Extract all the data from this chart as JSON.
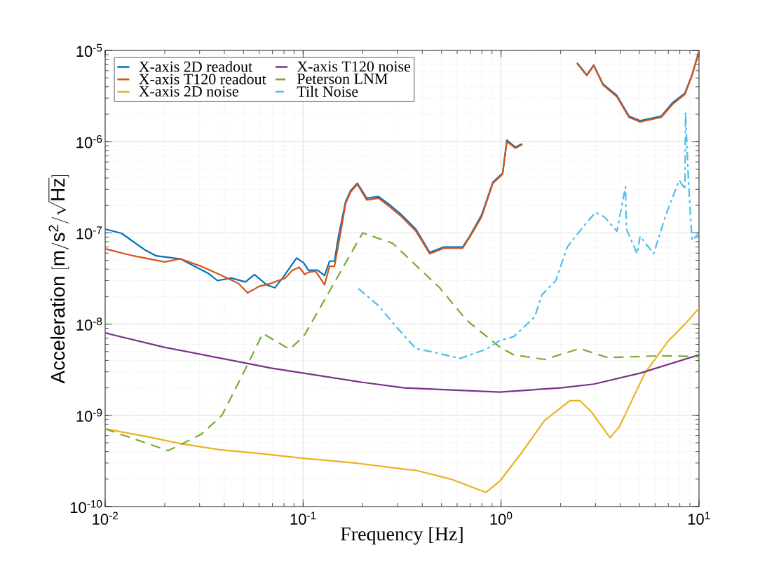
{
  "chart_data": {
    "type": "line",
    "xlabel": "Frequency [Hz]",
    "ylabel": "\\mathrm{Acceleration}\\ [\\mathrm{m/s^2/\\sqrt{Hz}}]",
    "log": "xy",
    "grid": true,
    "legend": "top left",
    "xlim": [
      0.01,
      10
    ],
    "ylim": [
      1e-10,
      1e-05
    ],
    "xticks": [
      {
        "value": 0.01,
        "label": "10$^{-2}$"
      },
      {
        "value": 0.1,
        "label": "10$^{-1}$"
      },
      {
        "value": 1,
        "label": "10$^{0}$"
      },
      {
        "value": 10,
        "label": "10$^{1}$"
      }
    ],
    "yticks": [
      {
        "value": 1e-10,
        "label": "10$^{-10}$"
      },
      {
        "value": 1e-09,
        "label": "10$^{-9}$"
      },
      {
        "value": 1e-08,
        "label": "10$^{-8}$"
      },
      {
        "value": 1e-07,
        "label": "10$^{-7}$"
      },
      {
        "value": 1e-06,
        "label": "10$^{-6}$"
      },
      {
        "value": 1e-05,
        "label": "10$^{-5}$"
      }
    ],
    "series": [
      {
        "name": "X-axis 2D readout",
        "color": "#0072bd",
        "line_style": "solid",
        "x": [
          0.01,
          0.0121,
          0.0159,
          0.0181,
          0.0239,
          0.0332,
          0.0369,
          0.0434,
          0.0511,
          0.0568,
          0.0653,
          0.072,
          0.0787,
          0.0927,
          0.1006,
          0.1064,
          0.1183,
          0.1284,
          0.136,
          0.144,
          0.151,
          0.164,
          0.1737,
          0.188,
          0.2095,
          0.2405,
          0.2765,
          0.315,
          0.371,
          0.436,
          0.514,
          0.64,
          0.695,
          0.798,
          0.909,
          1.018,
          1.07,
          1.18,
          1.28,
          1.6,
          2.42,
          2.71,
          2.94,
          3.27,
          3.85,
          4.43,
          5.04,
          6.44,
          7.39,
          8.49,
          9.22,
          10
        ],
        "values": [
          1.1e-07,
          9.9e-08,
          6.5e-08,
          5.6e-08,
          5.2e-08,
          3.6e-08,
          3e-08,
          3.2e-08,
          2.9e-08,
          3.5e-08,
          2.7e-08,
          2.5e-08,
          3.2e-08,
          5.3e-08,
          4.7e-08,
          3.9e-08,
          3.9e-08,
          3.4e-08,
          4.9e-08,
          4.9e-08,
          9.2e-08,
          2.2e-07,
          2.9e-07,
          3.5e-07,
          2.4e-07,
          2.5e-07,
          2e-07,
          1.57e-07,
          1.1e-07,
          6.1e-08,
          7e-08,
          7e-08,
          9.2e-08,
          1.57e-07,
          3.6e-07,
          4.5e-07,
          1.04e-06,
          8.7e-07,
          9.5e-07,
          null,
          7.3e-06,
          5.4e-06,
          6.9e-06,
          4.3e-06,
          3.2e-06,
          1.9e-06,
          1.7e-06,
          1.9e-06,
          2.7e-06,
          3.4e-06,
          5.4e-06,
          9.8e-06
        ]
      },
      {
        "name": "X-axis T120 readout",
        "color": "#d95319",
        "line_style": "solid",
        "x": [
          0.01,
          0.0139,
          0.02,
          0.0239,
          0.0306,
          0.0378,
          0.0471,
          0.0524,
          0.0601,
          0.069,
          0.075,
          0.0813,
          0.0883,
          0.0957,
          0.102,
          0.106,
          0.1156,
          0.1284,
          0.136,
          0.144,
          0.1535,
          0.164,
          0.1737,
          0.188,
          0.2095,
          0.2405,
          0.2765,
          0.315,
          0.371,
          0.436,
          0.514,
          0.64,
          0.695,
          0.798,
          0.909,
          1.018,
          1.07,
          1.18,
          1.28,
          1.6,
          2.42,
          2.71,
          2.94,
          3.27,
          3.85,
          4.43,
          5.04,
          6.44,
          7.39,
          8.49,
          9.22,
          10
        ],
        "values": [
          6.7e-08,
          5.6e-08,
          4.8e-08,
          5.2e-08,
          4.3e-08,
          3.5e-08,
          2.8e-08,
          2.2e-08,
          2.6e-08,
          2.8e-08,
          3e-08,
          3.2e-08,
          3.9e-08,
          4.2e-08,
          3.5e-08,
          3.7e-08,
          3.8e-08,
          2.7e-08,
          4.3e-08,
          4.3e-08,
          9.2e-08,
          2.1e-07,
          2.8e-07,
          3.4e-07,
          2.3e-07,
          2.4e-07,
          1.9e-07,
          1.5e-07,
          1.05e-07,
          5.9e-08,
          6.8e-08,
          6.8e-08,
          9e-08,
          1.5e-07,
          3.5e-07,
          4.4e-07,
          1e-06,
          8.5e-07,
          9.3e-07,
          null,
          7.2e-06,
          5.3e-06,
          6.8e-06,
          4.2e-06,
          3.1e-06,
          1.85e-06,
          1.65e-06,
          1.85e-06,
          2.6e-06,
          3.3e-06,
          5.3e-06,
          9.8e-06
        ]
      },
      {
        "name": "X-axis 2D noise",
        "color": "#edb120",
        "line_style": "solid",
        "x": [
          0.01,
          0.0159,
          0.0239,
          0.0378,
          0.0617,
          0.0982,
          0.184,
          0.334,
          0.371,
          0.557,
          0.838,
          0.986,
          1.26,
          1.66,
          2.23,
          2.5,
          2.85,
          3.55,
          3.95,
          5.33,
          6.98,
          8.49,
          10
        ],
        "values": [
          7.1e-10,
          5.9e-10,
          4.9e-10,
          4.2e-10,
          3.8e-10,
          3.4e-10,
          3e-10,
          2.55e-10,
          2.5e-10,
          2e-10,
          1.43e-10,
          1.9e-10,
          3.8e-10,
          8.8e-10,
          1.45e-09,
          1.45e-09,
          1.1e-09,
          5.7e-10,
          7.4e-10,
          2.9e-09,
          6.5e-09,
          1e-08,
          1.49e-08
        ]
      },
      {
        "name": "X-axis T120 noise",
        "color": "#7e2f8e",
        "line_style": "solid",
        "x": [
          0.01,
          0.0197,
          0.0389,
          0.0689,
          0.1006,
          0.2,
          0.325,
          0.49,
          0.986,
          2.0,
          2.94,
          5.04,
          10
        ],
        "values": [
          8e-09,
          5.6e-09,
          4.2e-09,
          3.3e-09,
          2.9e-09,
          2.3e-09,
          2e-09,
          1.92e-09,
          1.8e-09,
          2e-09,
          2.2e-09,
          2.9e-09,
          4.6e-09
        ]
      },
      {
        "name": "Peterson LNM",
        "color": "#77ac30",
        "line_style": "dashed",
        "x": [
          0.01,
          0.0208,
          0.0306,
          0.0389,
          0.0499,
          0.0626,
          0.0854,
          0.1006,
          0.2,
          0.283,
          0.49,
          0.67,
          0.986,
          1.16,
          1.66,
          2.5,
          3.45,
          6.44,
          10
        ],
        "values": [
          7.1e-10,
          4.1e-10,
          6.2e-10,
          1e-09,
          2.9e-09,
          7.9e-09,
          5.3e-09,
          7.3e-09,
          1e-07,
          7.7e-08,
          2.5e-08,
          1.1e-08,
          5.6e-09,
          4.6e-09,
          4.1e-09,
          5.4e-09,
          4.3e-09,
          4.5e-09,
          4.4e-09
        ]
      },
      {
        "name": "Tilt Noise",
        "color": "#4dbeee",
        "line_style": "dashdot",
        "x": [
          0.19,
          0.24,
          0.3,
          0.371,
          0.46,
          0.62,
          0.84,
          0.986,
          1.16,
          1.48,
          1.61,
          1.89,
          2.16,
          2.61,
          3.0,
          3.34,
          3.85,
          4.25,
          4.3,
          4.87,
          5.04,
          5.9,
          6.8,
          7.95,
          8.49,
          8.55,
          8.85,
          9.22,
          10
        ],
        "values": [
          2.45e-08,
          1.6e-08,
          9e-09,
          5.4e-09,
          4.9e-09,
          4.2e-09,
          5.3e-09,
          6.6e-09,
          7.3e-09,
          1.2e-08,
          2.1e-08,
          3e-08,
          7e-08,
          1.18e-07,
          1.68e-07,
          1.49e-07,
          1.04e-07,
          3.2e-07,
          1.1e-07,
          5.9e-08,
          9.2e-08,
          5.9e-08,
          1.57e-07,
          3.8e-07,
          3e-07,
          2.1e-06,
          3.6e-07,
          8.3e-08,
          9.9e-08
        ]
      }
    ]
  }
}
